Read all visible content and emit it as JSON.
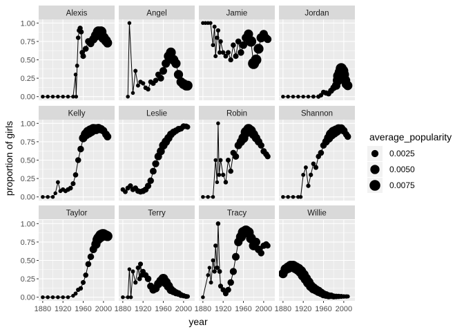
{
  "chart_data": {
    "type": "scatter",
    "facet_titles": [
      "Alexis",
      "Angel",
      "Jamie",
      "Jordan",
      "Kelly",
      "Leslie",
      "Robin",
      "Shannon",
      "Taylor",
      "Terry",
      "Tracy",
      "Willie"
    ],
    "xlabel": "year",
    "ylabel": "proportion of girls",
    "xlim": [
      1872,
      2022
    ],
    "ylim": [
      -0.05,
      1.05
    ],
    "x_ticks": [
      1880,
      1920,
      1960,
      2000
    ],
    "y_ticks": [
      0.0,
      0.25,
      0.5,
      0.75,
      1.0
    ],
    "x_tick_labels": [
      "1880",
      "1920",
      "1960",
      "2000"
    ],
    "y_tick_labels": [
      "0.00",
      "0.25",
      "0.50",
      "0.75",
      "1.00"
    ],
    "geoms": [
      "line",
      "point"
    ],
    "size_variable": "average_popularity",
    "legend": {
      "title": "average_popularity",
      "position": "right",
      "items": [
        {
          "label": "0.0025",
          "value": 0.0025
        },
        {
          "label": "0.0050",
          "value": 0.005
        },
        {
          "label": "0.0075",
          "value": 0.0075
        }
      ]
    },
    "grid": true,
    "colors": {
      "panel_bg": "#ebebeb",
      "strip_bg": "#d9d9d9",
      "grid": "#ffffff",
      "points": "#000000",
      "axis_text": "#4d4d4d"
    },
    "series": [
      {
        "facet": "Alexis",
        "x": [
          1880,
          1890,
          1900,
          1910,
          1920,
          1930,
          1940,
          1945,
          1946,
          1948,
          1950,
          1952,
          1954,
          1956,
          1958,
          1960,
          1965,
          1970,
          1975,
          1980,
          1985,
          1990,
          1995,
          2000,
          2005,
          2008
        ],
        "y": [
          0,
          0,
          0,
          0,
          0,
          0,
          0,
          0.3,
          0,
          0.42,
          0.8,
          0.9,
          0.93,
          0.88,
          0.6,
          0.55,
          0.65,
          0.75,
          0.72,
          0.78,
          0.83,
          0.88,
          0.88,
          0.8,
          0.76,
          0.73
        ],
        "size": [
          0.0003,
          0.0003,
          0.0003,
          0.0003,
          0.0003,
          0.0003,
          0.0003,
          0.0003,
          0.0003,
          0.0004,
          0.0006,
          0.0008,
          0.0009,
          0.0009,
          0.001,
          0.0012,
          0.0015,
          0.002,
          0.0025,
          0.004,
          0.006,
          0.008,
          0.008,
          0.007,
          0.006,
          0.005
        ]
      },
      {
        "facet": "Angel",
        "x": [
          1890,
          1893,
          1900,
          1905,
          1910,
          1915,
          1920,
          1925,
          1930,
          1935,
          1940,
          1945,
          1950,
          1955,
          1960,
          1965,
          1970,
          1975,
          1980,
          1985,
          1990,
          1995,
          2000,
          2005,
          2008
        ],
        "y": [
          0,
          1.0,
          0.05,
          0.35,
          0.15,
          0.2,
          0.18,
          0.12,
          0.1,
          0.2,
          0.18,
          0.22,
          0.3,
          0.25,
          0.35,
          0.45,
          0.55,
          0.6,
          0.5,
          0.45,
          0.3,
          0.2,
          0.17,
          0.15,
          0.15
        ],
        "size": [
          0.0003,
          0.0003,
          0.0003,
          0.0004,
          0.0004,
          0.0005,
          0.0005,
          0.0006,
          0.0006,
          0.0008,
          0.0009,
          0.001,
          0.0015,
          0.002,
          0.003,
          0.004,
          0.005,
          0.006,
          0.006,
          0.005,
          0.005,
          0.005,
          0.006,
          0.006,
          0.006
        ]
      },
      {
        "facet": "Jamie",
        "x": [
          1880,
          1885,
          1890,
          1895,
          1900,
          1903,
          1905,
          1908,
          1910,
          1913,
          1915,
          1920,
          1925,
          1930,
          1935,
          1940,
          1945,
          1950,
          1955,
          1960,
          1965,
          1970,
          1975,
          1980,
          1985,
          1990,
          1995,
          2000,
          2005,
          2008
        ],
        "y": [
          1.0,
          1.0,
          1.0,
          1.0,
          0.7,
          0.95,
          0.55,
          0.8,
          0.9,
          0.6,
          0.75,
          0.6,
          0.55,
          0.6,
          0.5,
          0.7,
          0.55,
          0.75,
          0.6,
          0.7,
          0.8,
          0.85,
          0.75,
          0.45,
          0.5,
          0.65,
          0.8,
          0.85,
          0.8,
          0.78
        ],
        "size": [
          0.0003,
          0.0003,
          0.0003,
          0.0003,
          0.0004,
          0.0004,
          0.0004,
          0.0005,
          0.0005,
          0.0005,
          0.0006,
          0.0006,
          0.0007,
          0.0008,
          0.0009,
          0.001,
          0.0012,
          0.0015,
          0.002,
          0.003,
          0.004,
          0.005,
          0.007,
          0.008,
          0.007,
          0.006,
          0.005,
          0.004,
          0.003,
          0.003
        ]
      },
      {
        "facet": "Jordan",
        "x": [
          1880,
          1890,
          1900,
          1910,
          1920,
          1930,
          1940,
          1950,
          1955,
          1960,
          1965,
          1970,
          1975,
          1980,
          1985,
          1988,
          1990,
          1993,
          1995,
          1998,
          2000,
          2003,
          2005,
          2008
        ],
        "y": [
          0,
          0,
          0,
          0,
          0,
          0,
          0,
          0,
          0.02,
          0.06,
          0.05,
          0.04,
          0.08,
          0.12,
          0.15,
          0.22,
          0.28,
          0.33,
          0.38,
          0.35,
          0.3,
          0.22,
          0.17,
          0.15
        ],
        "size": [
          0.0003,
          0.0003,
          0.0003,
          0.0003,
          0.0003,
          0.0003,
          0.0004,
          0.0005,
          0.0006,
          0.0008,
          0.001,
          0.0012,
          0.0015,
          0.002,
          0.004,
          0.006,
          0.008,
          0.008,
          0.008,
          0.008,
          0.007,
          0.006,
          0.005,
          0.005
        ]
      },
      {
        "facet": "Kelly",
        "x": [
          1880,
          1890,
          1900,
          1905,
          1910,
          1915,
          1920,
          1925,
          1930,
          1935,
          1940,
          1945,
          1950,
          1955,
          1960,
          1965,
          1970,
          1975,
          1980,
          1985,
          1990,
          1995,
          2000,
          2005,
          2008
        ],
        "y": [
          0,
          0,
          0,
          0.05,
          0.2,
          0.08,
          0.1,
          0.08,
          0.1,
          0.12,
          0.18,
          0.3,
          0.5,
          0.65,
          0.8,
          0.85,
          0.88,
          0.9,
          0.92,
          0.92,
          0.93,
          0.92,
          0.9,
          0.85,
          0.82
        ],
        "size": [
          0.0003,
          0.0003,
          0.0003,
          0.0003,
          0.0004,
          0.0004,
          0.0005,
          0.0005,
          0.0006,
          0.0007,
          0.0008,
          0.001,
          0.0015,
          0.002,
          0.004,
          0.006,
          0.008,
          0.008,
          0.007,
          0.006,
          0.005,
          0.004,
          0.003,
          0.003,
          0.003
        ]
      },
      {
        "facet": "Leslie",
        "x": [
          1880,
          1885,
          1890,
          1895,
          1900,
          1905,
          1910,
          1915,
          1920,
          1925,
          1930,
          1935,
          1940,
          1945,
          1950,
          1955,
          1960,
          1965,
          1970,
          1975,
          1980,
          1985,
          1990,
          1995,
          2000,
          2005,
          2008
        ],
        "y": [
          0.1,
          0.07,
          0.12,
          0.15,
          0.1,
          0.12,
          0.08,
          0.07,
          0.08,
          0.1,
          0.15,
          0.22,
          0.35,
          0.45,
          0.55,
          0.62,
          0.7,
          0.75,
          0.8,
          0.85,
          0.88,
          0.9,
          0.92,
          0.93,
          0.96,
          0.96,
          0.95
        ],
        "size": [
          0.0006,
          0.0007,
          0.0008,
          0.0009,
          0.001,
          0.001,
          0.0012,
          0.0013,
          0.0015,
          0.0016,
          0.0018,
          0.002,
          0.0022,
          0.0025,
          0.003,
          0.0035,
          0.004,
          0.004,
          0.0035,
          0.003,
          0.0025,
          0.002,
          0.002,
          0.0015,
          0.0015,
          0.0012,
          0.001
        ]
      },
      {
        "facet": "Robin",
        "x": [
          1880,
          1890,
          1900,
          1905,
          1908,
          1910,
          1912,
          1915,
          1920,
          1925,
          1930,
          1935,
          1940,
          1945,
          1950,
          1955,
          1960,
          1965,
          1970,
          1975,
          1980,
          1985,
          1990,
          1995,
          2000,
          2005,
          2008
        ],
        "y": [
          0,
          0,
          0,
          0.5,
          0.2,
          1.0,
          0.3,
          0.5,
          0.3,
          0.2,
          0.5,
          0.35,
          0.6,
          0.55,
          0.7,
          0.75,
          0.8,
          0.88,
          0.92,
          0.9,
          0.85,
          0.8,
          0.75,
          0.7,
          0.62,
          0.58,
          0.55
        ],
        "size": [
          0.0003,
          0.0003,
          0.0003,
          0.0003,
          0.0003,
          0.0003,
          0.0004,
          0.0004,
          0.0005,
          0.0006,
          0.0008,
          0.001,
          0.0015,
          0.002,
          0.003,
          0.004,
          0.006,
          0.007,
          0.007,
          0.006,
          0.005,
          0.004,
          0.003,
          0.002,
          0.0018,
          0.0015,
          0.0013
        ]
      },
      {
        "facet": "Shannon",
        "x": [
          1880,
          1890,
          1900,
          1910,
          1915,
          1920,
          1925,
          1930,
          1935,
          1940,
          1945,
          1950,
          1955,
          1960,
          1965,
          1970,
          1975,
          1980,
          1985,
          1990,
          1995,
          2000,
          2005,
          2008
        ],
        "y": [
          0,
          0,
          0,
          0,
          0,
          0.3,
          0.4,
          0.15,
          0.3,
          0.45,
          0.4,
          0.55,
          0.6,
          0.7,
          0.75,
          0.8,
          0.85,
          0.88,
          0.9,
          0.92,
          0.93,
          0.9,
          0.85,
          0.82
        ],
        "size": [
          0.0003,
          0.0003,
          0.0003,
          0.0003,
          0.0003,
          0.0004,
          0.0004,
          0.0005,
          0.0005,
          0.0006,
          0.0008,
          0.001,
          0.0015,
          0.002,
          0.003,
          0.005,
          0.007,
          0.008,
          0.007,
          0.006,
          0.004,
          0.003,
          0.002,
          0.002
        ]
      },
      {
        "facet": "Taylor",
        "x": [
          1880,
          1890,
          1900,
          1910,
          1920,
          1930,
          1940,
          1945,
          1950,
          1955,
          1960,
          1965,
          1970,
          1975,
          1980,
          1985,
          1988,
          1990,
          1993,
          1995,
          1998,
          2000,
          2003,
          2005,
          2008
        ],
        "y": [
          0,
          0,
          0,
          0,
          0,
          0,
          0.02,
          0.05,
          0.1,
          0.12,
          0.2,
          0.3,
          0.45,
          0.55,
          0.65,
          0.72,
          0.78,
          0.8,
          0.82,
          0.84,
          0.85,
          0.85,
          0.84,
          0.84,
          0.83
        ],
        "size": [
          0.0003,
          0.0003,
          0.0003,
          0.0003,
          0.0003,
          0.0003,
          0.0003,
          0.0004,
          0.0005,
          0.0006,
          0.0008,
          0.001,
          0.0015,
          0.002,
          0.003,
          0.005,
          0.006,
          0.007,
          0.008,
          0.008,
          0.008,
          0.008,
          0.007,
          0.006,
          0.006
        ]
      },
      {
        "facet": "Terry",
        "x": [
          1880,
          1890,
          1893,
          1896,
          1900,
          1905,
          1910,
          1913,
          1915,
          1918,
          1920,
          1925,
          1930,
          1935,
          1940,
          1945,
          1950,
          1955,
          1960,
          1965,
          1970,
          1975,
          1980,
          1985,
          1990,
          1995,
          2000,
          2005,
          2008
        ],
        "y": [
          0,
          0,
          0.38,
          0,
          0.35,
          0.2,
          0.4,
          0.25,
          0.45,
          0.3,
          0.35,
          0.3,
          0.25,
          0.15,
          0.1,
          0.12,
          0.18,
          0.22,
          0.25,
          0.2,
          0.15,
          0.1,
          0.08,
          0.06,
          0.05,
          0.03,
          0.02,
          0.01,
          0.01
        ],
        "size": [
          0.0003,
          0.0003,
          0.0003,
          0.0003,
          0.0004,
          0.0005,
          0.0006,
          0.0007,
          0.0008,
          0.0009,
          0.001,
          0.0015,
          0.002,
          0.0025,
          0.003,
          0.0035,
          0.004,
          0.005,
          0.006,
          0.006,
          0.005,
          0.004,
          0.003,
          0.0025,
          0.002,
          0.0015,
          0.001,
          0.0008,
          0.0006
        ]
      },
      {
        "facet": "Tracy",
        "x": [
          1880,
          1890,
          1893,
          1896,
          1900,
          1903,
          1905,
          1908,
          1910,
          1913,
          1915,
          1920,
          1925,
          1930,
          1935,
          1940,
          1945,
          1950,
          1955,
          1960,
          1965,
          1970,
          1975,
          1980,
          1985,
          1990,
          1995,
          2000,
          2005,
          2008
        ],
        "y": [
          0,
          0.3,
          0.4,
          0.2,
          0.5,
          0.35,
          0.7,
          0.4,
          1.0,
          0.35,
          0.15,
          0.1,
          0.05,
          0.1,
          0.2,
          0.35,
          0.55,
          0.75,
          0.82,
          0.88,
          0.9,
          0.88,
          0.8,
          0.7,
          0.75,
          0.65,
          0.6,
          0.7,
          0.72,
          0.7
        ],
        "size": [
          0.0003,
          0.0003,
          0.0003,
          0.0004,
          0.0004,
          0.0005,
          0.0005,
          0.0006,
          0.0006,
          0.0007,
          0.0008,
          0.001,
          0.0012,
          0.0015,
          0.002,
          0.0025,
          0.003,
          0.004,
          0.006,
          0.008,
          0.008,
          0.007,
          0.006,
          0.005,
          0.004,
          0.003,
          0.002,
          0.0018,
          0.0015,
          0.0013
        ]
      },
      {
        "facet": "Willie",
        "x": [
          1880,
          1885,
          1890,
          1895,
          1900,
          1905,
          1910,
          1915,
          1920,
          1925,
          1930,
          1935,
          1940,
          1945,
          1950,
          1955,
          1960,
          1965,
          1970,
          1975,
          1980,
          1985,
          1990,
          1995,
          2000,
          2005,
          2008
        ],
        "y": [
          0.32,
          0.38,
          0.4,
          0.42,
          0.42,
          0.4,
          0.38,
          0.35,
          0.3,
          0.25,
          0.2,
          0.15,
          0.12,
          0.1,
          0.08,
          0.06,
          0.04,
          0.03,
          0.02,
          0.02,
          0.01,
          0.01,
          0.01,
          0.01,
          0.01,
          0.01,
          0.01
        ],
        "size": [
          0.005,
          0.006,
          0.007,
          0.008,
          0.008,
          0.008,
          0.008,
          0.008,
          0.008,
          0.007,
          0.007,
          0.006,
          0.006,
          0.005,
          0.005,
          0.004,
          0.0035,
          0.003,
          0.0025,
          0.002,
          0.0015,
          0.0012,
          0.001,
          0.0008,
          0.0006,
          0.0005,
          0.0004
        ]
      }
    ]
  }
}
